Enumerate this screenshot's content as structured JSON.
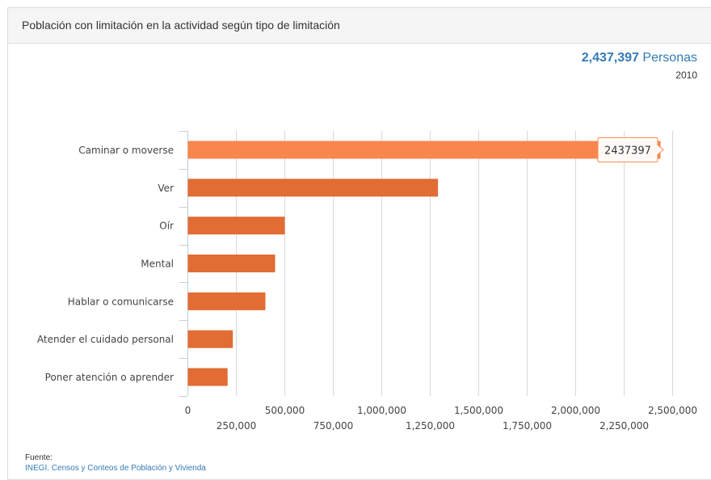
{
  "panel": {
    "title": "Población con limitación en la actividad según tipo de limitación"
  },
  "stat": {
    "value": "2,437,397",
    "unit": "Personas",
    "year": "2010"
  },
  "source": {
    "label": "Fuente:",
    "link_text": "INEGI. Censos y Conteos de Población y Vivienda"
  },
  "tooltip": {
    "text": "2437397"
  },
  "colors": {
    "bar": "#e16c34",
    "bar_highlight": "#f8864d",
    "grid": "#d8d8d8",
    "axis": "#c0d0e0",
    "link": "#337ab7"
  },
  "chart_data": {
    "type": "bar",
    "orientation": "horizontal",
    "categories": [
      "Caminar o moverse",
      "Ver",
      "Oír",
      "Mental",
      "Hablar o comunicarse",
      "Atender el cuidado personal",
      "Poner atención o aprender"
    ],
    "values": [
      2437397,
      1290000,
      500000,
      450000,
      400000,
      232000,
      205000
    ],
    "highlighted_index": 0,
    "xlim": [
      0,
      2500000
    ],
    "x_ticks": [
      "0",
      "250,000",
      "500,000",
      "750,000",
      "1,000,000",
      "1,250,000",
      "1,500,000",
      "1,750,000",
      "2,000,000",
      "2,250,000",
      "2,500,000"
    ],
    "grid": true,
    "legend": false
  }
}
